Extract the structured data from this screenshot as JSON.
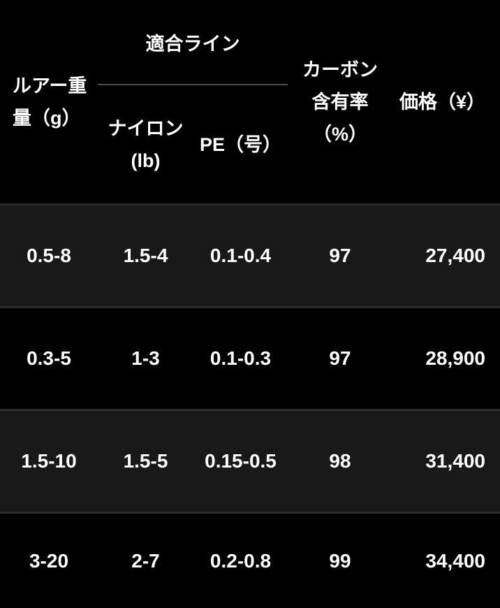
{
  "chart_data": {
    "type": "table",
    "column_group": {
      "label": "適合ライン",
      "covers": [
        "ナイロン (lb)",
        "PE（号）"
      ]
    },
    "columns": [
      "ルアー重量（g）",
      "ナイロン (lb)",
      "PE（号）",
      "カーボン含有率（%）",
      "価格（¥）"
    ],
    "rows": [
      [
        "0.5-8",
        "1.5-4",
        "0.1-0.4",
        "97",
        "27,400"
      ],
      [
        "0.3-5",
        "1-3",
        "0.1-0.3",
        "97",
        "28,900"
      ],
      [
        "1.5-10",
        "1.5-5",
        "0.15-0.5",
        "98",
        "31,400"
      ],
      [
        "3-20",
        "2-7",
        "0.2-0.8",
        "99",
        "34,400"
      ]
    ],
    "layout_hints": {
      "price_column_alignment": "right",
      "other_columns_alignment": "center",
      "alternating_row_shading": "rows 1 and 3 lighter"
    }
  },
  "header": {
    "lure_weight": {
      "line1": "ルアー重",
      "line2": "量（g）"
    },
    "line_group": "適合ライン",
    "nylon": {
      "line1": "ナイロン",
      "line2": "(lb)"
    },
    "pe": "PE（号）",
    "carbon": {
      "line1": "カーボン",
      "line2": "含有率",
      "line3": "（%）"
    },
    "price": "価格（¥）"
  },
  "colors": {
    "background": "#000000",
    "row_alt_background": "#191919",
    "separator": "#2d2d2d",
    "group_rule": "#4f4f4f",
    "text": "#ffffff"
  }
}
